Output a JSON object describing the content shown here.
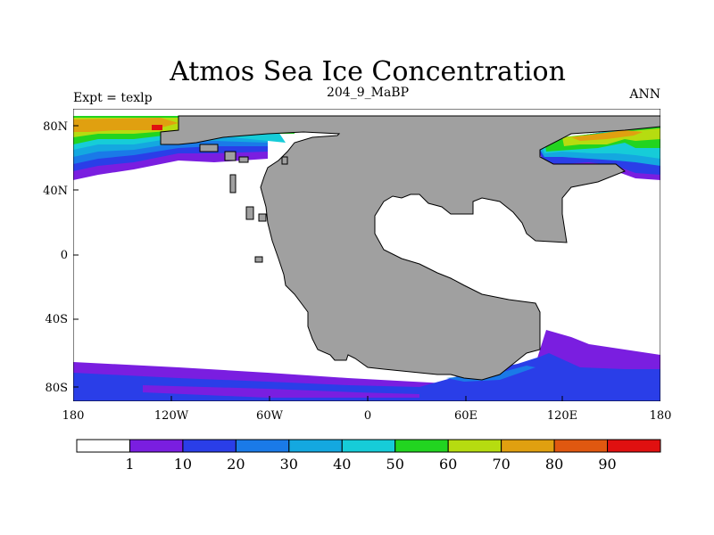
{
  "map": {
    "title": "Atmos Sea Ice Concentration",
    "left_label": "Expt = texlp",
    "center_label": "204_9_MaBP",
    "right_label": "ANN",
    "lat_labels": [
      "80N",
      "40N",
      "0",
      "40S",
      "80S"
    ],
    "lon_labels": [
      "180",
      "120W",
      "60W",
      "0",
      "60E",
      "120E",
      "180"
    ],
    "land_color": "#a0a0a0",
    "colors": {
      "c1": "#7a1ee0",
      "c10": "#2a3ee8",
      "c20": "#1a7ae8",
      "c30": "#14a8e0",
      "c40": "#16ccd8",
      "c50": "#22d420",
      "c60": "#b6dc10",
      "c70": "#e0a010",
      "c80": "#e05810",
      "c90": "#e01010"
    }
  },
  "colorbar": {
    "labels": [
      "1",
      "10",
      "20",
      "30",
      "40",
      "50",
      "60",
      "70",
      "80",
      "90"
    ],
    "colors": [
      "#ffffff",
      "#7a1ee0",
      "#2a3ee8",
      "#1a7ae8",
      "#14a8e0",
      "#16ccd8",
      "#22d420",
      "#b6dc10",
      "#e0a010",
      "#e05810",
      "#e01010"
    ]
  }
}
